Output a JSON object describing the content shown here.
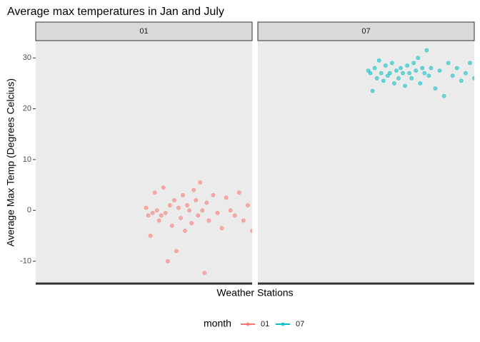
{
  "chart_data": {
    "type": "scatter",
    "title": "Average max temperatures in Jan and July",
    "x_label": "Weather Stations",
    "y_label": "Average Max Temp (Degrees Celcius)",
    "legend_title": "month",
    "legend_position": "bottom",
    "facet": true,
    "grid": false,
    "xlim": [
      0,
      100
    ],
    "ylim": [
      -14.4,
      33.4
    ],
    "yticks": [
      -10,
      0,
      10,
      20,
      30
    ],
    "series": [
      {
        "name": "01",
        "color": "#F8766D",
        "x": [
          51,
          52,
          53,
          54,
          55,
          56,
          57,
          58,
          59,
          60,
          61,
          62,
          63,
          64,
          65,
          66,
          67,
          68,
          69,
          70,
          71,
          72,
          73,
          74,
          75,
          76,
          77,
          78,
          79,
          80,
          82,
          84,
          86,
          88,
          90,
          92,
          94,
          96,
          98,
          100
        ],
        "values": [
          0.5,
          -1,
          -5,
          -0.5,
          3.5,
          0,
          -2,
          -1,
          4.5,
          -0.5,
          -10,
          1,
          -3,
          2,
          -8,
          0.5,
          -1.5,
          3,
          -4,
          1,
          0,
          -2.5,
          4,
          2,
          -1,
          5.5,
          0,
          -12.3,
          1.5,
          -2,
          3,
          -0.5,
          -3.5,
          2.5,
          0,
          -1,
          3.5,
          -2,
          1,
          -4
        ]
      },
      {
        "name": "07",
        "color": "#00BFC4",
        "x": [
          51,
          52,
          53,
          54,
          55,
          56,
          57,
          58,
          59,
          60,
          61,
          62,
          63,
          64,
          65,
          66,
          67,
          68,
          69,
          70,
          71,
          72,
          73,
          74,
          75,
          76,
          77,
          78,
          79,
          80,
          82,
          84,
          86,
          88,
          90,
          92,
          94,
          96,
          98,
          100
        ],
        "values": [
          27.5,
          27,
          23.5,
          28,
          26,
          29.5,
          27,
          25.5,
          28.5,
          26.5,
          27,
          29,
          25,
          27.5,
          26,
          28,
          27,
          24.5,
          28.5,
          27,
          26,
          29,
          27.5,
          30,
          25,
          28,
          27,
          31.5,
          26.5,
          28,
          24,
          27.5,
          22.5,
          29,
          26.5,
          28,
          25.5,
          27,
          29,
          26
        ]
      }
    ]
  }
}
